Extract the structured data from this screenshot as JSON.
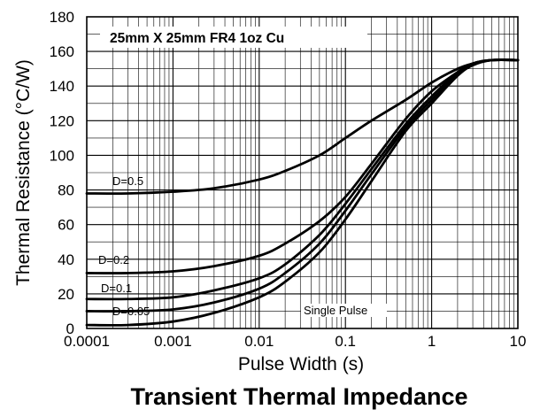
{
  "chart_data": {
    "type": "line",
    "title": "Transient Thermal Impedance",
    "annotation": "25mm X 25mm FR4 1oz Cu",
    "xlabel": "Pulse Width (s)",
    "ylabel": "Thermal Resistance (°C/W)",
    "xscale": "log",
    "xlim": [
      0.0001,
      10
    ],
    "ylim": [
      0,
      180
    ],
    "xticks": [
      "0.0001",
      "0.001",
      "0.01",
      "0.1",
      "1",
      "10"
    ],
    "yticks": [
      "0",
      "20",
      "40",
      "60",
      "80",
      "100",
      "120",
      "140",
      "160",
      "180"
    ],
    "grid": true,
    "series": [
      {
        "name": "D=0.5",
        "x": [
          0.0001,
          0.0003,
          0.001,
          0.003,
          0.01,
          0.02,
          0.05,
          0.1,
          0.2,
          0.5,
          1,
          2,
          3,
          5,
          10
        ],
        "y": [
          78,
          78,
          79,
          81,
          86,
          91,
          100,
          110,
          120,
          132,
          142,
          150,
          153,
          155,
          155
        ]
      },
      {
        "name": "D=0.2",
        "x": [
          0.0001,
          0.0003,
          0.001,
          0.003,
          0.01,
          0.02,
          0.05,
          0.1,
          0.2,
          0.5,
          1,
          2,
          3,
          5,
          10
        ],
        "y": [
          32,
          32,
          33,
          36,
          42,
          49,
          62,
          76,
          95,
          121,
          137,
          148,
          153,
          155,
          155
        ]
      },
      {
        "name": "D=0.1",
        "x": [
          0.0001,
          0.0003,
          0.001,
          0.003,
          0.01,
          0.02,
          0.05,
          0.1,
          0.2,
          0.5,
          1,
          2,
          3,
          5,
          10
        ],
        "y": [
          17,
          17,
          18,
          22,
          29,
          37,
          54,
          72,
          92,
          118,
          134,
          148,
          153,
          155,
          155
        ]
      },
      {
        "name": "D=0.05",
        "x": [
          0.0001,
          0.0003,
          0.001,
          0.003,
          0.01,
          0.02,
          0.05,
          0.1,
          0.2,
          0.5,
          1,
          2,
          3,
          5,
          10
        ],
        "y": [
          10,
          10,
          11,
          15,
          23,
          32,
          49,
          68,
          89,
          116,
          132,
          147,
          153,
          155,
          155
        ]
      },
      {
        "name": "Single Pulse",
        "x": [
          0.0001,
          0.0003,
          0.001,
          0.003,
          0.01,
          0.02,
          0.05,
          0.1,
          0.2,
          0.5,
          1,
          2,
          3,
          5,
          10
        ],
        "y": [
          2,
          2,
          4,
          9,
          18,
          27,
          44,
          63,
          85,
          114,
          130,
          146,
          152,
          155,
          155
        ]
      }
    ]
  }
}
